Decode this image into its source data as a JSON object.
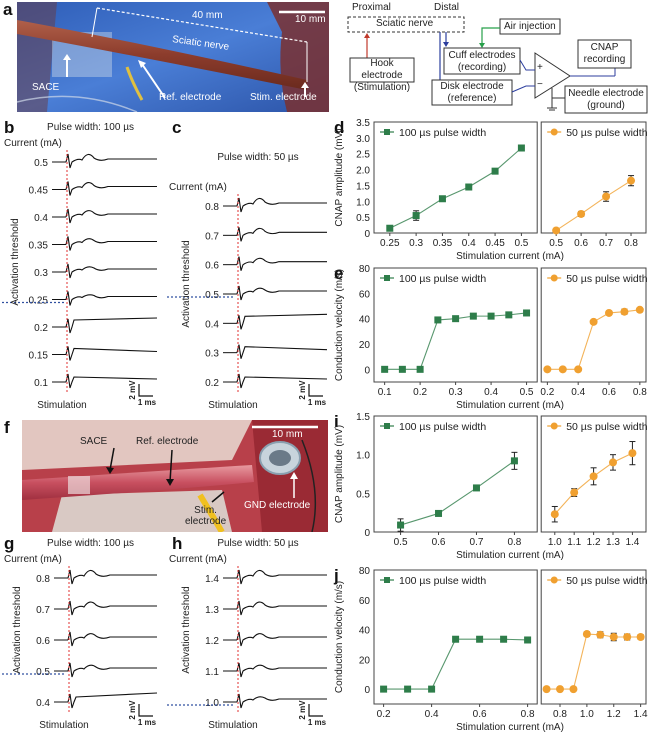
{
  "panel_labels": {
    "a": "a",
    "b": "b",
    "c": "c",
    "d": "d",
    "e": "e",
    "f": "f",
    "g": "g",
    "h": "h",
    "i": "i",
    "j": "j"
  },
  "photo_a": {
    "distance_label": "40 mm",
    "scale_label": "10 mm",
    "nerve_label": "Sciatic nerve",
    "sace_label": "SACE",
    "ref_label": "Ref. electrode",
    "stim_label": "Stim. electrode",
    "colors": {
      "background": "#3f6fc4",
      "nerve": "#8a3a2a"
    }
  },
  "diagram": {
    "proximal": "Proximal",
    "distal": "Distal",
    "nerve_box": "Sciatic nerve",
    "air": "Air injection",
    "cuff_line1": "Cuff electrodes",
    "cuff_line2": "(recording)",
    "hook_line1": "Hook electrode",
    "hook_line2": "(Stimulation)",
    "disk_line1": "Disk electrode",
    "disk_line2": "(reference)",
    "cnap_line1": "CNAP",
    "cnap_line2": "recording",
    "needle_line1": "Needle electrode",
    "needle_line2": "(ground)",
    "plus": "+",
    "minus": "−",
    "colors": {
      "stim": "#c0392b",
      "rec": "#2c3e9e",
      "air": "#27a04a"
    }
  },
  "photo_f": {
    "scale_label": "10 mm",
    "sace_label": "SACE",
    "ref_label": "Ref. electrode",
    "stim_label_1": "Stim.",
    "stim_label_2": "electrode",
    "gnd_label": "GND electrode",
    "colors": {
      "background": "#b8404a"
    }
  },
  "traces": {
    "b": {
      "title": "Pulse width: 100 µs",
      "ylabel": "Current (mA)",
      "side_label": "Activation threshold",
      "stim_label": "Stimulation",
      "scale_v": "2 mV",
      "scale_t": "1 ms",
      "levels": [
        "0.5",
        "0.45",
        "0.4",
        "0.35",
        "0.3",
        "0.25",
        "0.2",
        "0.15",
        "0.1"
      ],
      "threshold": "0.25"
    },
    "c": {
      "title": "Pulse width: 50 µs",
      "ylabel": "Current (mA)",
      "side_label": "Activation threshold",
      "stim_label": "Stimulation",
      "scale_v": "2 mV",
      "scale_t": "1 ms",
      "levels": [
        "0.8",
        "0.7",
        "0.6",
        "0.5",
        "0.4",
        "0.3",
        "0.2"
      ],
      "threshold": "0.5"
    },
    "g": {
      "title": "Pulse width: 100 µs",
      "ylabel": "Current (mA)",
      "side_label": "Activation threshold",
      "stim_label": "Stimulation",
      "scale_v": "2 mV",
      "scale_t": "1 ms",
      "levels": [
        "0.8",
        "0.7",
        "0.6",
        "0.5",
        "0.4"
      ],
      "threshold": "0.5"
    },
    "h": {
      "title": "Pulse width: 50 µs",
      "ylabel": "Current (mA)",
      "side_label": "Activation threshold",
      "stim_label": "Stimulation",
      "scale_v": "2 mV",
      "scale_t": "1 ms",
      "levels": [
        "1.4",
        "1.3",
        "1.2",
        "1.1",
        "1.0"
      ],
      "threshold": "1.0"
    }
  },
  "colors": {
    "green": "#2e7d4a",
    "orange": "#f0a030",
    "threshold_line": "#3050a0",
    "stim_line": "#e03030"
  },
  "chart_data": [
    {
      "id": "d",
      "type": "line",
      "ylabel": "CNAP amplitude (mV)",
      "xlabel": "Stimulation current (mA)",
      "ylim": [
        0,
        3.5
      ],
      "yticks": [
        "0",
        "0.5",
        "1.0",
        "1.5",
        "2.0",
        "2.5",
        "3.0",
        "3.5"
      ],
      "subplots": [
        {
          "legend": "100 µs pulse width",
          "marker": "square",
          "color": "#2e7d4a",
          "x": [
            0.25,
            0.3,
            0.35,
            0.4,
            0.45,
            0.5
          ],
          "xticks": [
            "0.25",
            "0.3",
            "0.35",
            "0.4",
            "0.45",
            "0.5"
          ],
          "xlim": [
            0.22,
            0.53
          ],
          "y": [
            0.15,
            0.55,
            1.08,
            1.45,
            1.95,
            2.68
          ],
          "err": [
            0.05,
            0.15,
            0.04,
            0.08,
            0.08,
            0.08
          ]
        },
        {
          "legend": "50 µs pulse width",
          "marker": "circle",
          "color": "#f0a030",
          "x": [
            0.5,
            0.6,
            0.7,
            0.8
          ],
          "xticks": [
            "0.5",
            "0.6",
            "0.7",
            "0.8"
          ],
          "xlim": [
            0.44,
            0.86
          ],
          "y": [
            0.08,
            0.6,
            1.15,
            1.65
          ],
          "err": [
            0.04,
            0.08,
            0.15,
            0.16
          ]
        }
      ]
    },
    {
      "id": "e",
      "type": "line",
      "ylabel": "Conduction velocity (m/s)",
      "xlabel": "Stimulation current (mA)",
      "ylim": [
        -10,
        80
      ],
      "yticks": [
        "0",
        "20",
        "40",
        "60",
        "80"
      ],
      "subplots": [
        {
          "legend": "100 µs pulse width",
          "marker": "square",
          "color": "#2e7d4a",
          "x": [
            0.1,
            0.15,
            0.2,
            0.25,
            0.3,
            0.35,
            0.4,
            0.45,
            0.5
          ],
          "xticks": [
            "0.1",
            "0.2",
            "0.3",
            "0.4",
            "0.5"
          ],
          "xlim": [
            0.07,
            0.53
          ],
          "y": [
            0,
            0,
            0,
            39,
            40,
            42,
            42,
            43,
            44.5
          ],
          "err": [
            0,
            0,
            0,
            0.8,
            1.2,
            0.8,
            0.8,
            0.8,
            0.8
          ]
        },
        {
          "legend": "50 µs pulse width",
          "marker": "circle",
          "color": "#f0a030",
          "x": [
            0.2,
            0.3,
            0.4,
            0.5,
            0.6,
            0.7,
            0.8
          ],
          "xticks": [
            "0.2",
            "0.4",
            "0.6",
            "0.8"
          ],
          "xlim": [
            0.16,
            0.84
          ],
          "y": [
            0,
            0,
            0,
            37.5,
            44.5,
            45.5,
            47
          ],
          "err": [
            0,
            0,
            0,
            0.8,
            0.8,
            2,
            1.5
          ]
        }
      ]
    },
    {
      "id": "i",
      "type": "line",
      "ylabel": "CNAP amplitude (mV)",
      "xlabel": "Stimulation current (mA)",
      "ylim": [
        0,
        1.5
      ],
      "yticks": [
        "0",
        "0.5",
        "1.0",
        "1.5"
      ],
      "subplots": [
        {
          "legend": "100 µs pulse width",
          "marker": "square",
          "color": "#2e7d4a",
          "x": [
            0.5,
            0.6,
            0.7,
            0.8
          ],
          "xticks": [
            "0.5",
            "0.6",
            "0.7",
            "0.8"
          ],
          "xlim": [
            0.43,
            0.86
          ],
          "y": [
            0.09,
            0.24,
            0.57,
            0.92
          ],
          "err": [
            0.08,
            0.02,
            0.02,
            0.11
          ]
        },
        {
          "legend": "50 µs pulse width",
          "marker": "circle",
          "color": "#f0a030",
          "x": [
            1.0,
            1.1,
            1.2,
            1.3,
            1.4
          ],
          "xticks": [
            "1.0",
            "1.1",
            "1.2",
            "1.3",
            "1.4"
          ],
          "xlim": [
            0.93,
            1.47
          ],
          "y": [
            0.23,
            0.51,
            0.72,
            0.9,
            1.02
          ],
          "err": [
            0.1,
            0.05,
            0.11,
            0.1,
            0.15
          ]
        }
      ]
    },
    {
      "id": "j",
      "type": "line",
      "ylabel": "Conduction velocity (m/s)",
      "xlabel": "Stimulation current (mA)",
      "ylim": [
        -10,
        80
      ],
      "yticks": [
        "0",
        "20",
        "40",
        "60",
        "80"
      ],
      "subplots": [
        {
          "legend": "100 µs pulse width",
          "marker": "square",
          "color": "#2e7d4a",
          "x": [
            0.2,
            0.3,
            0.4,
            0.5,
            0.6,
            0.7,
            0.8
          ],
          "xticks": [
            "0.2",
            "0.4",
            "0.6",
            "0.8"
          ],
          "xlim": [
            0.16,
            0.84
          ],
          "y": [
            0,
            0,
            0,
            33.5,
            33.5,
            33.5,
            33
          ],
          "err": [
            0,
            0,
            0,
            1.5,
            1,
            1,
            1
          ]
        },
        {
          "legend": "50 µs pulse width",
          "marker": "circle",
          "color": "#f0a030",
          "x": [
            0.7,
            0.8,
            0.9,
            1.0,
            1.1,
            1.2,
            1.3,
            1.4
          ],
          "xticks": [
            "0.8",
            "1.0",
            "1.2",
            "1.4"
          ],
          "xlim": [
            0.66,
            1.44
          ],
          "y": [
            0,
            0,
            0,
            37,
            36.5,
            35,
            35,
            35
          ],
          "err": [
            0,
            0,
            0,
            1.5,
            2,
            2.5,
            2,
            1.5
          ]
        }
      ]
    }
  ]
}
